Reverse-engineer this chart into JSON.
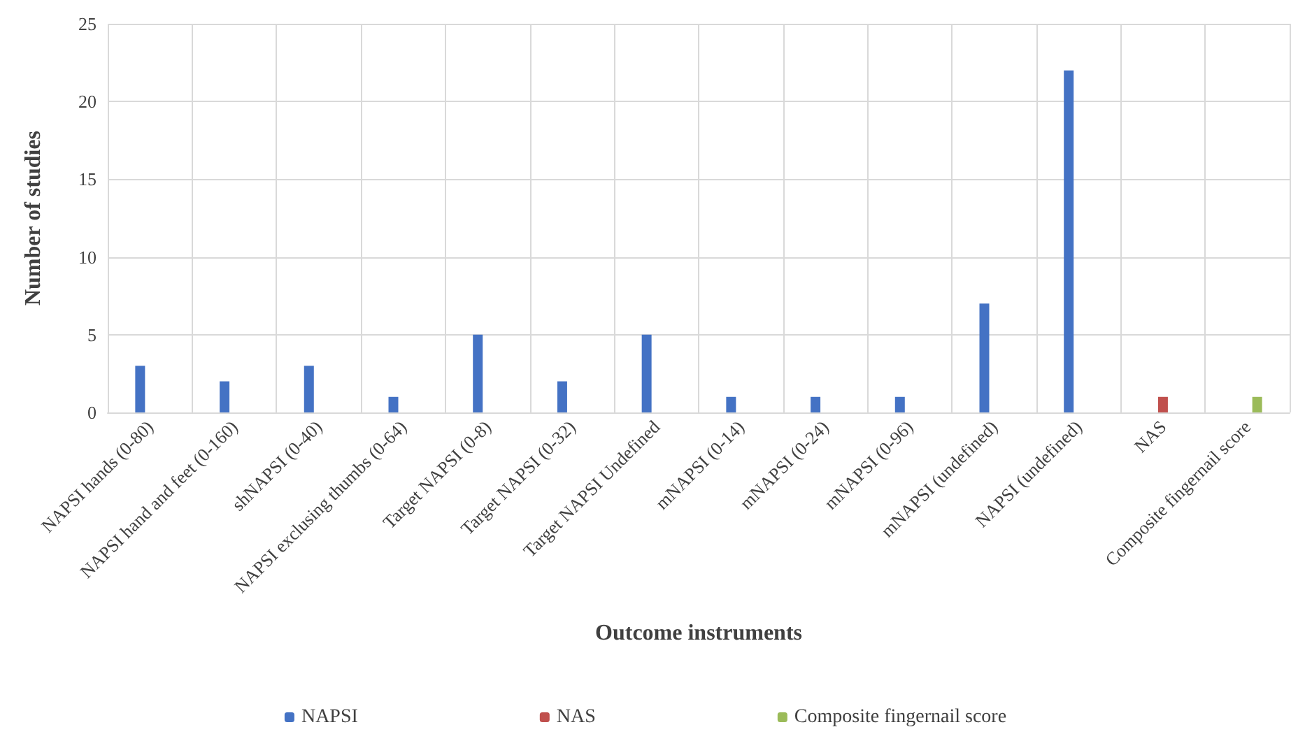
{
  "chart_data": {
    "type": "bar",
    "xlabel": "Outcome instruments",
    "ylabel": "Number of studies",
    "categories": [
      "NAPSI hands (0-80)",
      "NAPSI hand and feet (0-160)",
      "shNAPSI (0-40)",
      "NAPSI exclusing thumbs (0-64)",
      "Target NAPSI (0-8)",
      "Target NAPSI (0-32)",
      "Target NAPSI Undefined",
      "mNAPSI (0-14)",
      "mNAPSI (0-24)",
      "mNAPSI (0-96)",
      "mNAPSI (undefined)",
      "NAPSI (undefined)",
      "NAS",
      "Composite fingernail score"
    ],
    "series": [
      {
        "name": "NAPSI",
        "color": "#4472c4",
        "values": [
          3,
          2,
          3,
          1,
          5,
          2,
          5,
          1,
          1,
          1,
          7,
          22,
          null,
          null
        ]
      },
      {
        "name": "NAS",
        "color": "#c0504d",
        "values": [
          null,
          null,
          null,
          null,
          null,
          null,
          null,
          null,
          null,
          null,
          null,
          null,
          1,
          null
        ]
      },
      {
        "name": "Composite fingernail score",
        "color": "#9bbb59",
        "values": [
          null,
          null,
          null,
          null,
          null,
          null,
          null,
          null,
          null,
          null,
          null,
          null,
          null,
          1
        ]
      }
    ],
    "ylim": [
      0,
      25
    ],
    "yticks": [
      0,
      5,
      10,
      15,
      20,
      25
    ],
    "grid": true,
    "legend": "bottom"
  }
}
